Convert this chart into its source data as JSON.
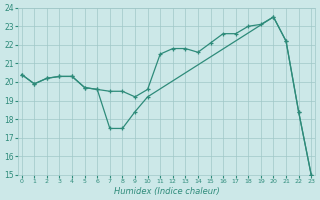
{
  "line_upper_x": [
    0,
    1,
    2,
    3,
    4,
    5,
    6,
    7,
    8,
    9,
    10,
    11,
    12,
    13,
    14,
    15,
    16,
    17,
    18,
    19,
    20,
    21,
    22,
    23
  ],
  "line_upper_y": [
    20.4,
    19.9,
    20.2,
    20.3,
    20.3,
    19.7,
    19.6,
    19.5,
    19.5,
    19.2,
    19.6,
    21.5,
    21.8,
    21.8,
    21.6,
    22.1,
    22.6,
    22.6,
    23.0,
    23.1,
    23.5,
    22.2,
    18.4,
    15.0
  ],
  "line_lower_x": [
    0,
    1,
    2,
    3,
    4,
    5,
    6,
    7,
    8,
    9,
    10,
    20,
    21,
    22,
    23
  ],
  "line_lower_y": [
    20.4,
    19.9,
    20.2,
    20.3,
    20.3,
    19.7,
    19.6,
    17.5,
    17.5,
    18.4,
    19.2,
    23.5,
    22.2,
    18.4,
    15.0
  ],
  "color": "#2e8b7a",
  "bg_color": "#cce8e8",
  "grid_color": "#a0c8c8",
  "xlabel": "Humidex (Indice chaleur)",
  "ylim": [
    15,
    24
  ],
  "xlim": [
    -0.3,
    23.3
  ],
  "yticks": [
    15,
    16,
    17,
    18,
    19,
    20,
    21,
    22,
    23,
    24
  ],
  "xticks": [
    0,
    1,
    2,
    3,
    4,
    5,
    6,
    7,
    8,
    9,
    10,
    11,
    12,
    13,
    14,
    15,
    16,
    17,
    18,
    19,
    20,
    21,
    22,
    23
  ]
}
